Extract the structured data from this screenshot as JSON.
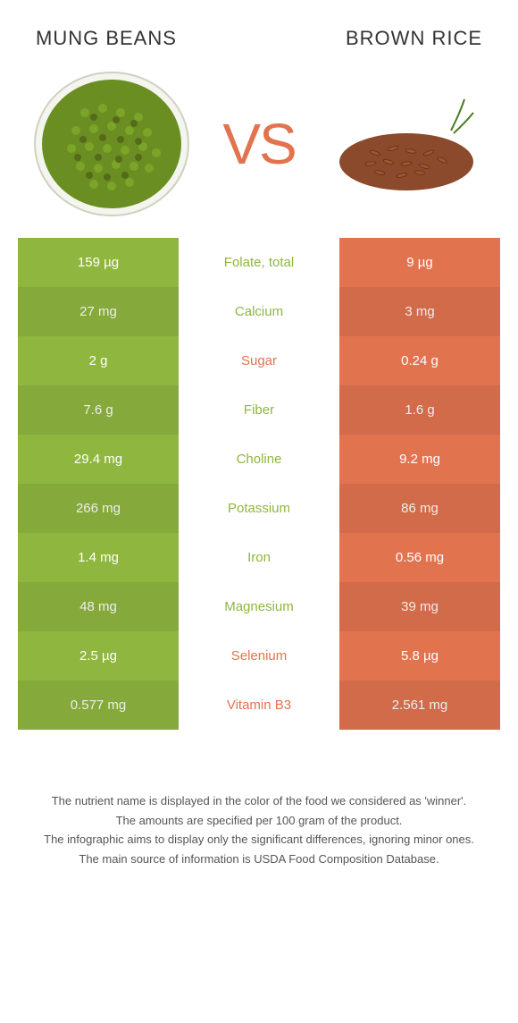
{
  "left_food": "MUNG BEANS",
  "right_food": "BROWN RICE",
  "vs": "VS",
  "colors": {
    "left": "#8fb63e",
    "right": "#e2734f",
    "vs": "#e2734f"
  },
  "rows": [
    {
      "left": "159 µg",
      "label": "Folate, total",
      "right": "9 µg",
      "winner": "left"
    },
    {
      "left": "27 mg",
      "label": "Calcium",
      "right": "3 mg",
      "winner": "left"
    },
    {
      "left": "2 g",
      "label": "Sugar",
      "right": "0.24 g",
      "winner": "right"
    },
    {
      "left": "7.6 g",
      "label": "Fiber",
      "right": "1.6 g",
      "winner": "left"
    },
    {
      "left": "29.4 mg",
      "label": "Choline",
      "right": "9.2 mg",
      "winner": "left"
    },
    {
      "left": "266 mg",
      "label": "Potassium",
      "right": "86 mg",
      "winner": "left"
    },
    {
      "left": "1.4 mg",
      "label": "Iron",
      "right": "0.56 mg",
      "winner": "left"
    },
    {
      "left": "48 mg",
      "label": "Magnesium",
      "right": "39 mg",
      "winner": "left"
    },
    {
      "left": "2.5 µg",
      "label": "Selenium",
      "right": "5.8 µg",
      "winner": "right"
    },
    {
      "left": "0.577 mg",
      "label": "Vitamin B3",
      "right": "2.561 mg",
      "winner": "right"
    }
  ],
  "footer": [
    "The nutrient name is displayed in the color of the food we considered as 'winner'.",
    "The amounts are specified per 100 gram of the product.",
    "The infographic aims to display only the significant differences, ignoring minor ones.",
    "The main source of information is USDA Food Composition Database."
  ]
}
